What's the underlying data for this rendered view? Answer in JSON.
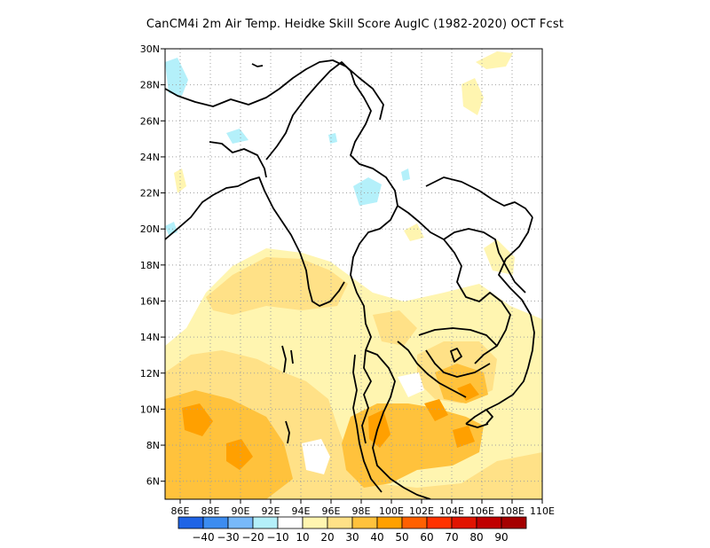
{
  "title": "CanCM4i  2m Air Temp. Heidke Skill Score AugIC (1982-2020) OCT Fcst",
  "map": {
    "lat_labels": [
      "30N",
      "28N",
      "26N",
      "24N",
      "22N",
      "20N",
      "18N",
      "16N",
      "14N",
      "12N",
      "10N",
      "8N",
      "6N"
    ],
    "lon_labels": [
      "86E",
      "88E",
      "90E",
      "92E",
      "94E",
      "96E",
      "98E",
      "100E",
      "102E",
      "104E",
      "106E",
      "108E",
      "110E"
    ],
    "lon_range": [
      85,
      110
    ],
    "lat_range": [
      5,
      30
    ],
    "gridlines": true
  },
  "colorbar": {
    "colors": [
      "#1f64e6",
      "#3c8cf0",
      "#78b9fa",
      "#b4f0fa",
      "#ffffff",
      "#fff5b0",
      "#ffe187",
      "#ffc23c",
      "#ffa000",
      "#ff6000",
      "#ff3200",
      "#e11400",
      "#c00000",
      "#a50000"
    ],
    "labels": [
      "-40",
      "-30",
      "-20",
      "-10",
      "10",
      "20",
      "30",
      "40",
      "50",
      "60",
      "70",
      "80",
      "90"
    ]
  }
}
